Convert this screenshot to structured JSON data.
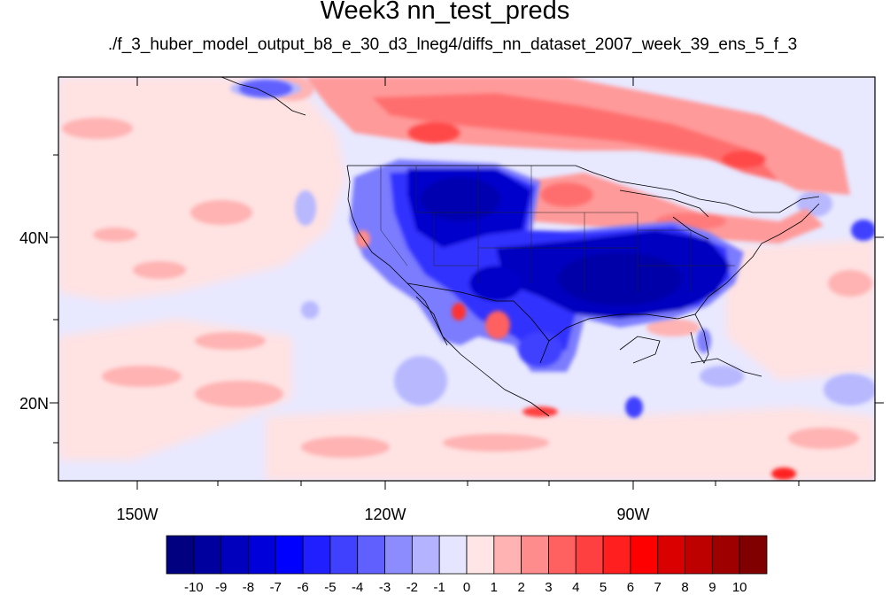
{
  "title": "Week3 nn_test_preds",
  "subtitle": "./f_3_huber_model_output_b8_e_30_d3_lneg4/diffs_nn_dataset_2007_week_39_ens_5_f_3",
  "axes": {
    "lat_labels": [
      "40N",
      "20N"
    ],
    "lon_labels": [
      "150W",
      "120W",
      "90W"
    ]
  },
  "colorbar": {
    "labels": [
      "-10",
      "-9",
      "-8",
      "-7",
      "-6",
      "-5",
      "-4",
      "-3",
      "-2",
      "-1",
      "0",
      "1",
      "2",
      "3",
      "4",
      "5",
      "6",
      "7",
      "8",
      "9",
      "10"
    ],
    "colors": [
      "#000080",
      "#00009e",
      "#0000bd",
      "#0000db",
      "#0000ff",
      "#1f1fff",
      "#4040ff",
      "#6060ff",
      "#8c8cff",
      "#b3b3ff",
      "#e5e5ff",
      "#ffe5e5",
      "#ffb3b3",
      "#ff8c8c",
      "#ff6060",
      "#ff4040",
      "#ff1f1f",
      "#ff0000",
      "#db0000",
      "#bd0000",
      "#9e0000",
      "#800000"
    ]
  },
  "map": {
    "background_color": "#e8e8ff",
    "coastline_color": "#000000"
  }
}
